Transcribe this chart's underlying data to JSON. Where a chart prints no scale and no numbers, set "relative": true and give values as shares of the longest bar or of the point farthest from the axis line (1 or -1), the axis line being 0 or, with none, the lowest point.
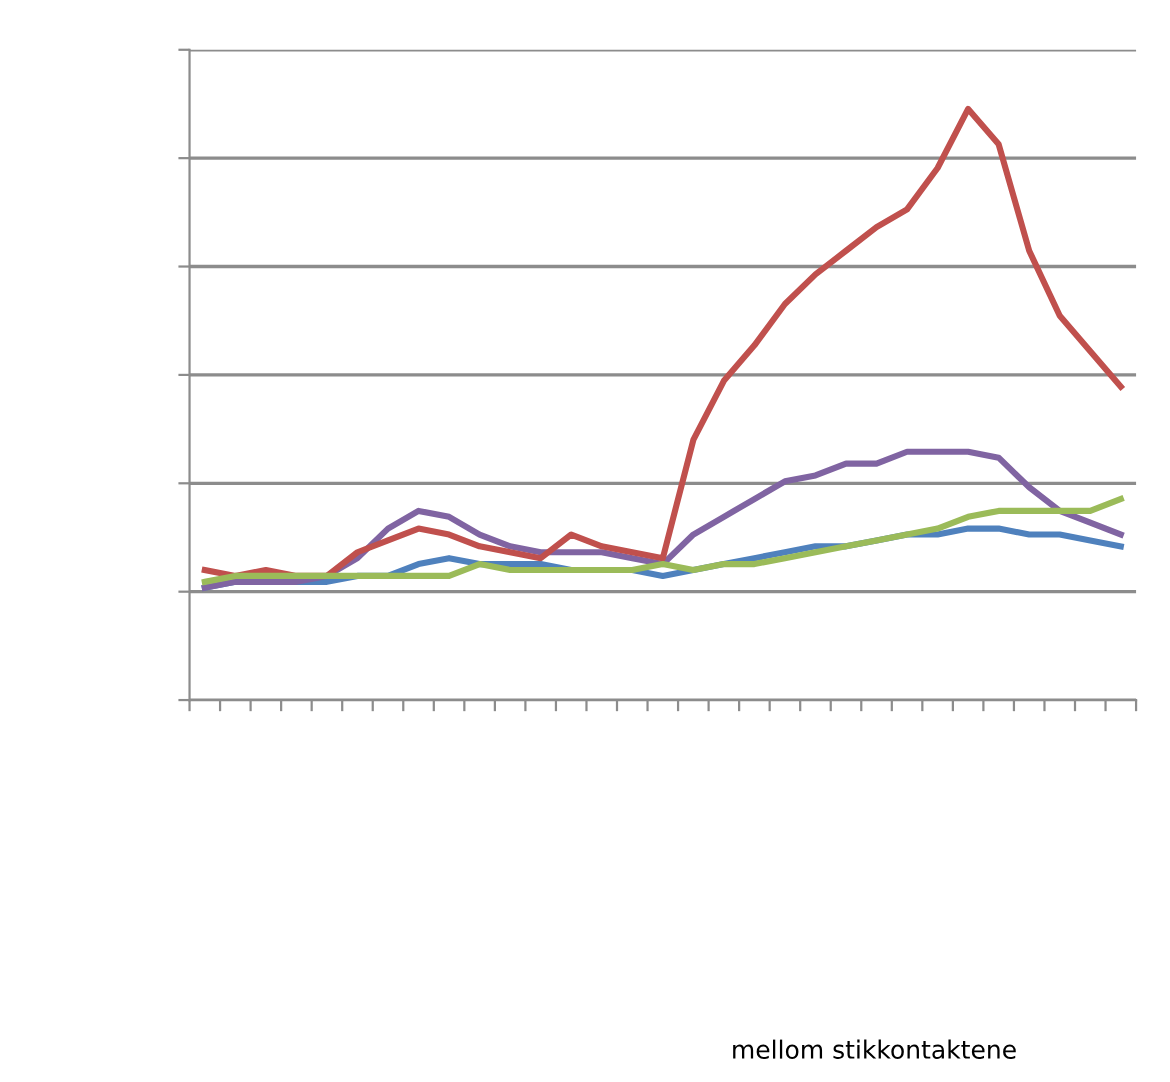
{
  "chart_data": {
    "type": "line",
    "relative": true,
    "grid": "y",
    "marker": "none",
    "line_style": "solid",
    "categories": [
      null,
      null,
      null,
      null,
      null,
      null,
      null,
      null,
      null,
      null,
      null,
      null,
      null,
      null,
      null,
      null,
      null,
      null,
      null,
      null,
      null,
      null,
      null,
      null,
      null,
      null,
      null,
      null,
      null,
      null,
      null
    ],
    "annotations": [
      "mellom stikkontaktene"
    ],
    "series": [
      {
        "color": "#4f81bd",
        "values": [
          0.19,
          0.2,
          0.2,
          0.2,
          0.2,
          0.21,
          0.21,
          0.23,
          0.24,
          0.23,
          0.23,
          0.23,
          0.22,
          0.22,
          0.22,
          0.21,
          0.22,
          0.23,
          0.24,
          0.25,
          0.26,
          0.26,
          0.27,
          0.28,
          0.28,
          0.29,
          0.29,
          0.28,
          0.28,
          0.27,
          0.26
        ]
      },
      {
        "color": "#8064a2",
        "values": [
          0.19,
          0.2,
          0.2,
          0.2,
          0.21,
          0.24,
          0.29,
          0.32,
          0.31,
          0.28,
          0.26,
          0.25,
          0.25,
          0.25,
          0.24,
          0.23,
          0.28,
          0.31,
          0.34,
          0.37,
          0.38,
          0.4,
          0.4,
          0.42,
          0.42,
          0.42,
          0.41,
          0.36,
          0.32,
          0.3,
          0.28
        ]
      },
      {
        "color": "#c0504d",
        "values": [
          0.22,
          0.21,
          0.22,
          0.21,
          0.21,
          0.25,
          0.27,
          0.29,
          0.28,
          0.26,
          0.25,
          0.24,
          0.28,
          0.26,
          0.25,
          0.24,
          0.44,
          0.54,
          0.6,
          0.67,
          0.72,
          0.76,
          0.8,
          0.83,
          0.9,
          1,
          0.94,
          0.76,
          0.65,
          0.59,
          0.53
        ]
      },
      {
        "color": "#9bbb59",
        "values": [
          0.2,
          0.21,
          0.21,
          0.21,
          0.21,
          0.21,
          0.21,
          0.21,
          0.21,
          0.23,
          0.22,
          0.22,
          0.22,
          0.22,
          0.22,
          0.23,
          0.22,
          0.23,
          0.23,
          0.24,
          0.25,
          0.26,
          0.27,
          0.28,
          0.29,
          0.31,
          0.32,
          0.32,
          0.32,
          0.32,
          0.34
        ]
      }
    ]
  }
}
